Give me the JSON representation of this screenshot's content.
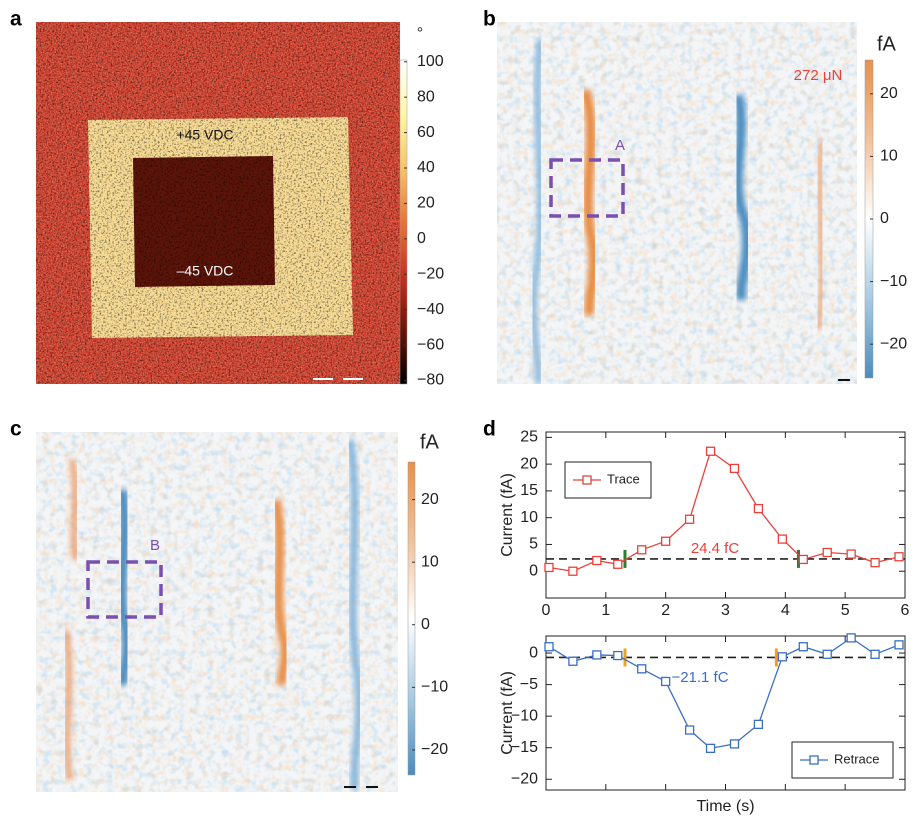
{
  "chart_data": [
    {
      "type": "image",
      "panel": "a",
      "colorbar_label": "°",
      "clim": [
        -82,
        101
      ],
      "cticks": [
        100,
        80,
        60,
        40,
        20,
        0,
        {
          "value": -20,
          "label": "−20"
        },
        {
          "value": -40,
          "label": "−40"
        },
        {
          "value": -60,
          "label": "−60"
        },
        {
          "value": -80,
          "label": "−80"
        }
      ],
      "colormap": [
        "#000000",
        "#6e1408",
        "#c8321f",
        "#e8743a",
        "#f6c46a",
        "#fff7a8",
        "#ffffff"
      ],
      "annotations": [
        "+45 VDC",
        "–45 VDC"
      ]
    },
    {
      "type": "image",
      "panel": "b",
      "colorbar_label": "fA",
      "clim": [
        -25.4,
        25.4
      ],
      "cticks": [
        20,
        10,
        0,
        {
          "value": -10,
          "label": "−10"
        },
        {
          "value": -20,
          "label": "−20"
        }
      ],
      "colormap": [
        "#4a8cc0",
        "#a9cbe3",
        "#ffffff",
        "#f2c29a",
        "#e8904a"
      ],
      "annotations": [
        "272 μN",
        "A"
      ]
    },
    {
      "type": "image",
      "panel": "c",
      "colorbar_label": "fA",
      "clim": [
        -24,
        26
      ],
      "cticks": [
        20,
        10,
        0,
        {
          "value": -10,
          "label": "−10"
        },
        {
          "value": -20,
          "label": "−20"
        }
      ],
      "colormap": [
        "#4a8cc0",
        "#a9cbe3",
        "#ffffff",
        "#f2c29a",
        "#e8904a"
      ],
      "annotations": [
        "B"
      ]
    },
    {
      "type": "line",
      "panel": "d",
      "ylabel": "Current (fA)",
      "x": [
        0.05,
        0.45,
        0.85,
        1.2,
        1.6,
        2.0,
        2.4,
        2.75,
        3.15,
        3.55,
        3.95,
        4.3,
        4.7,
        5.1,
        5.5,
        5.9
      ],
      "series": [
        {
          "name": "Trace",
          "color": "#e8413a",
          "values": [
            0.7,
            0.0,
            2.0,
            1.3,
            4.0,
            5.6,
            9.7,
            22.4,
            19.2,
            11.7,
            6.0,
            2.2,
            3.5,
            3.2,
            1.6,
            2.7
          ]
        }
      ],
      "xlim": [
        0,
        6
      ],
      "xticks": [
        0,
        1,
        2,
        3,
        4,
        5,
        6
      ],
      "ylim": [
        -5,
        26
      ],
      "yticks": [
        0,
        5,
        10,
        15,
        20,
        25
      ],
      "baseline": 2.3,
      "bounds": [
        1.32,
        4.22
      ],
      "bounds_color": "#2e7d32",
      "annotation": "24.4 fC",
      "legend": "upper left"
    },
    {
      "type": "line",
      "xlabel": "Time (s)",
      "ylabel": "Current (fA)",
      "x": [
        0.05,
        0.45,
        0.85,
        1.2,
        1.6,
        2.0,
        2.4,
        2.75,
        3.15,
        3.55,
        3.95,
        4.3,
        4.7,
        5.1,
        5.5,
        5.9
      ],
      "series": [
        {
          "name": "Retrace",
          "color": "#3a6fc4",
          "values": [
            1.0,
            -1.3,
            -0.3,
            -0.4,
            -2.5,
            -4.5,
            -12.2,
            -15.1,
            -14.4,
            -11.3,
            -0.6,
            1.0,
            -0.2,
            2.4,
            -0.2,
            1.3
          ]
        }
      ],
      "xlim": [
        0,
        6
      ],
      "xticks": [
        0,
        1,
        2,
        3,
        4,
        5,
        6
      ],
      "xtick_labels": false,
      "ylim": [
        -21.7,
        2.7
      ],
      "yticks": [
        0,
        {
          "value": -5,
          "label": "−5"
        },
        {
          "value": -10,
          "label": "−10"
        },
        {
          "value": -15,
          "label": "−15"
        },
        {
          "value": -20,
          "label": "−20"
        }
      ],
      "baseline": -0.7,
      "bounds": [
        1.32,
        3.85
      ],
      "bounds_color": "#f0a020",
      "annotation": "−21.1 fC",
      "legend": "lower right"
    }
  ]
}
